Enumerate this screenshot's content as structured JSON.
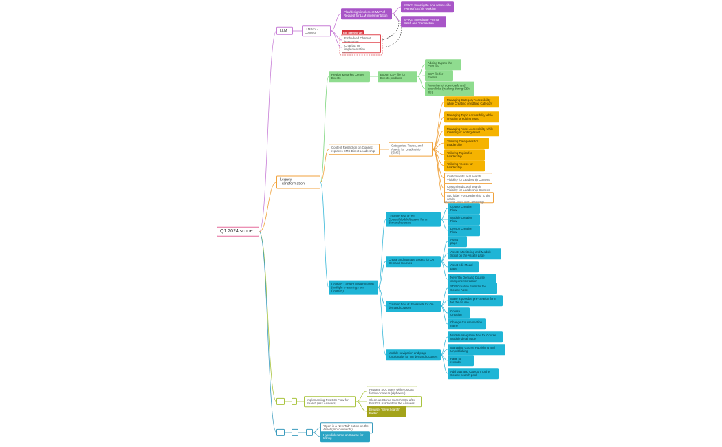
{
  "root": {
    "label": "Q1 2024 scope",
    "children": [
      {
        "label": "LLM",
        "children": [
          {
            "label": "LLM tool - Connect",
            "children": [
              {
                "label": "Plan/design/implement MVP of Request for LLM implementation",
                "children": [
                  {
                    "label": "SPIKE: Investigate how server-side events (SSE) is working"
                  },
                  {
                    "label": "SPIKE: Investigate Prisma Batch and Transaction"
                  }
                ]
              },
              {
                "label": "Embedded Chatbot integration",
                "tag": "not defined yet"
              },
              {
                "label": "Chat bot UI implementation",
                "note": "learn more"
              }
            ]
          }
        ]
      },
      {
        "label": "Legacy Transformation",
        "children": [
          {
            "label": "Region & Market Center Events",
            "children": [
              {
                "label": "Export CSV file for Events products",
                "children": [
                  {
                    "label": "Adding tags to the CSV file"
                  },
                  {
                    "label": "CSV file for Events"
                  },
                  {
                    "label": "A number of downloads and open links (tracking during CSV file)"
                  }
                ]
              }
            ]
          },
          {
            "label": "Content Restriction on Connect replaces EMS-Direct Leadership",
            "children": [
              {
                "label": "Categories, Topics, and Assets for Leadership (EMS)",
                "children": [
                  {
                    "label": "Managing Category Accessibility while Creating or editing Category"
                  },
                  {
                    "label": "Managing Topic Accessibility while creating or editing Topic"
                  },
                  {
                    "label": "Managing Asset Accessibility while Creating or editing Asset"
                  },
                  {
                    "label": "Tailoring Categories for Leadership"
                  },
                  {
                    "label": "Tailoring Topics for Leadership"
                  },
                  {
                    "label": "Tailoring Access for Leadership"
                  },
                  {
                    "label": "Customised Local search Visibility for Leadership Content"
                  },
                  {
                    "label": "Customised Local search Visibility for Leadership Content"
                  },
                  {
                    "label": "Add label 'For Leadership' to the cards",
                    "note": "Also within - how it done - need design"
                  }
                ]
              }
            ]
          },
          {
            "label": "Connect Content Modernization (multiple e-learnings per Courses)",
            "children": [
              {
                "label": "Creation flow of the Course/Module/Lesson for on demand courses",
                "children": [
                  {
                    "label": "Course Creation Flow"
                  },
                  {
                    "label": "Module Creation Flow"
                  },
                  {
                    "label": "Lesson Creation Flow"
                  }
                ]
              },
              {
                "label": "Create and manage assets for On Demand Courses",
                "children": [
                  {
                    "label": "Asset page"
                  },
                  {
                    "label": "Assets Monitoring and Module Scroll on the Assets page"
                  },
                  {
                    "label": "Asset edit Modal page"
                  },
                  {
                    "label": "New 'On Demand Course' component creation"
                  }
                ]
              },
              {
                "label": "Creation flow of the Assets for On demand courses",
                "children": [
                  {
                    "label": "SDP Creation Form for the Course Asset"
                  },
                  {
                    "label": "Make a possible pre-creation form for the course"
                  },
                  {
                    "label": "Course Creation"
                  },
                  {
                    "label": "Change Course section name"
                  }
                ]
              },
              {
                "label": "Module navigation and page functionality for On demand Courses",
                "children": [
                  {
                    "label": "Module navigation flow for Course Module detail page"
                  },
                  {
                    "label": "Managing Course Publishing and Unpublishing"
                  },
                  {
                    "label": "Page for records"
                  },
                  {
                    "label": "Add tags and Category to the Course search pool"
                  }
                ]
              }
            ]
          }
        ]
      },
      {
        "label": "-",
        "children": [
          {
            "label": "-",
            "children": [
              {
                "label": "Implementing PostGIS Flow for Search (Ask Answers)",
                "children": [
                  {
                    "label": "Replace SQL query with PostGIS for the Answers (alpha/ver)"
                  },
                  {
                    "label": "Clean up Stored Search SQL after PostGIS is added for the Answers"
                  },
                  {
                    "label": "Browser 'Save Search' Button"
                  }
                ]
              }
            ]
          }
        ]
      },
      {
        "label": "-",
        "children": [
          {
            "label": "-",
            "children": [
              {
                "label": "-",
                "children": [
                  {
                    "label": "'Open in a New Tab' button on the Asset (improvements)"
                  },
                  {
                    "label": "Hyperlink name on Course for linking"
                  }
                ]
              }
            ]
          }
        ]
      }
    ]
  }
}
